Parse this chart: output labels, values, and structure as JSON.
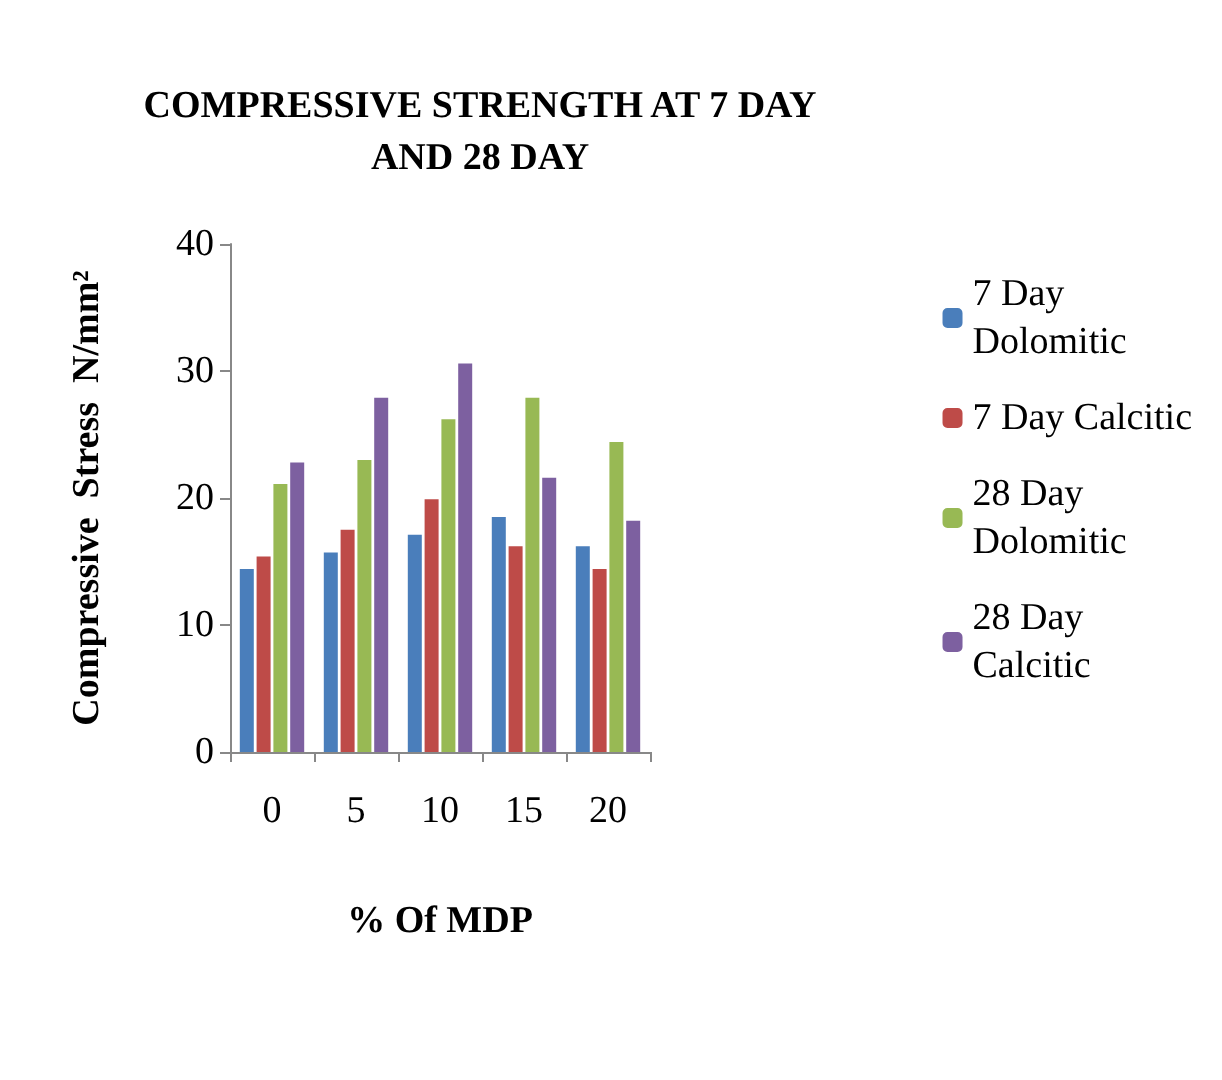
{
  "chart_data": {
    "type": "bar",
    "title": "COMPRESSIVE STRENGTH AT 7 DAY\nAND 28 DAY",
    "xlabel": "% Of MDP",
    "ylabel": "Compressive  Stress  N/mm²",
    "categories": [
      "0",
      "5",
      "10",
      "15",
      "20"
    ],
    "series": [
      {
        "name": "7 Day\nDolomitic",
        "color": "#4a7ebb",
        "values": [
          14.4,
          15.7,
          17.1,
          18.5,
          16.2
        ]
      },
      {
        "name": "7 Day Calcitic",
        "color": "#be4b48",
        "values": [
          15.4,
          17.5,
          19.9,
          16.2,
          14.4
        ]
      },
      {
        "name": "28 Day\nDolomitic",
        "color": "#98b954",
        "values": [
          21.1,
          23.0,
          26.2,
          27.9,
          24.4
        ]
      },
      {
        "name": "28 Day\nCalcitic",
        "color": "#7d60a0",
        "values": [
          22.8,
          27.9,
          30.6,
          21.6,
          18.2
        ]
      }
    ],
    "ylim": [
      0,
      40
    ],
    "yticks": [
      0,
      10,
      20,
      30,
      40
    ],
    "grid": false,
    "legend": "right"
  }
}
